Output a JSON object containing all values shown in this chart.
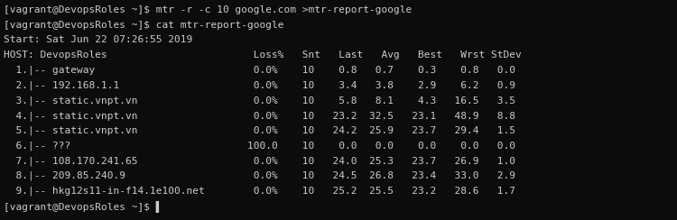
{
  "bg_color": "#0c0c0c",
  "text_color": "#cccccc",
  "font_family": "monospace",
  "font_size": 8.0,
  "figsize": [
    7.5,
    2.44
  ],
  "dpi": 100,
  "lines": [
    "[vagrant@DevopsRoles ~]$ mtr -r -c 10 google.com >mtr-report-google",
    "[vagrant@DevopsRoles ~]$ cat mtr-report-google",
    "Start: Sat Jun 22 07:26:55 2019",
    "HOST: DevopsRoles                        Loss%   Snt   Last   Avg   Best   Wrst StDev",
    "  1.|-- gateway                          0.0%    10    0.8   0.7    0.3    0.8   0.0",
    "  2.|-- 192.168.1.1                      0.0%    10    3.4   3.8    2.9    6.2   0.9",
    "  3.|-- static.vnpt.vn                   0.0%    10    5.8   8.1    4.3   16.5   3.5",
    "  4.|-- static.vnpt.vn                   0.0%    10   23.2  32.5   23.1   48.9   8.8",
    "  5.|-- static.vnpt.vn                   0.0%    10   24.2  25.9   23.7   29.4   1.5",
    "  6.|-- ???                             100.0    10    0.0   0.0    0.0    0.0   0.0",
    "  7.|-- 108.170.241.65                   0.0%    10   24.0  25.3   23.7   26.9   1.0",
    "  8.|-- 209.85.240.9                     0.0%    10   24.5  26.8   23.4   33.0   2.9",
    "  9.|-- hkg12s11-in-f14.1e100.net        0.0%    10   25.2  25.5   23.2   28.6   1.7",
    "[vagrant@DevopsRoles ~]$ |"
  ]
}
